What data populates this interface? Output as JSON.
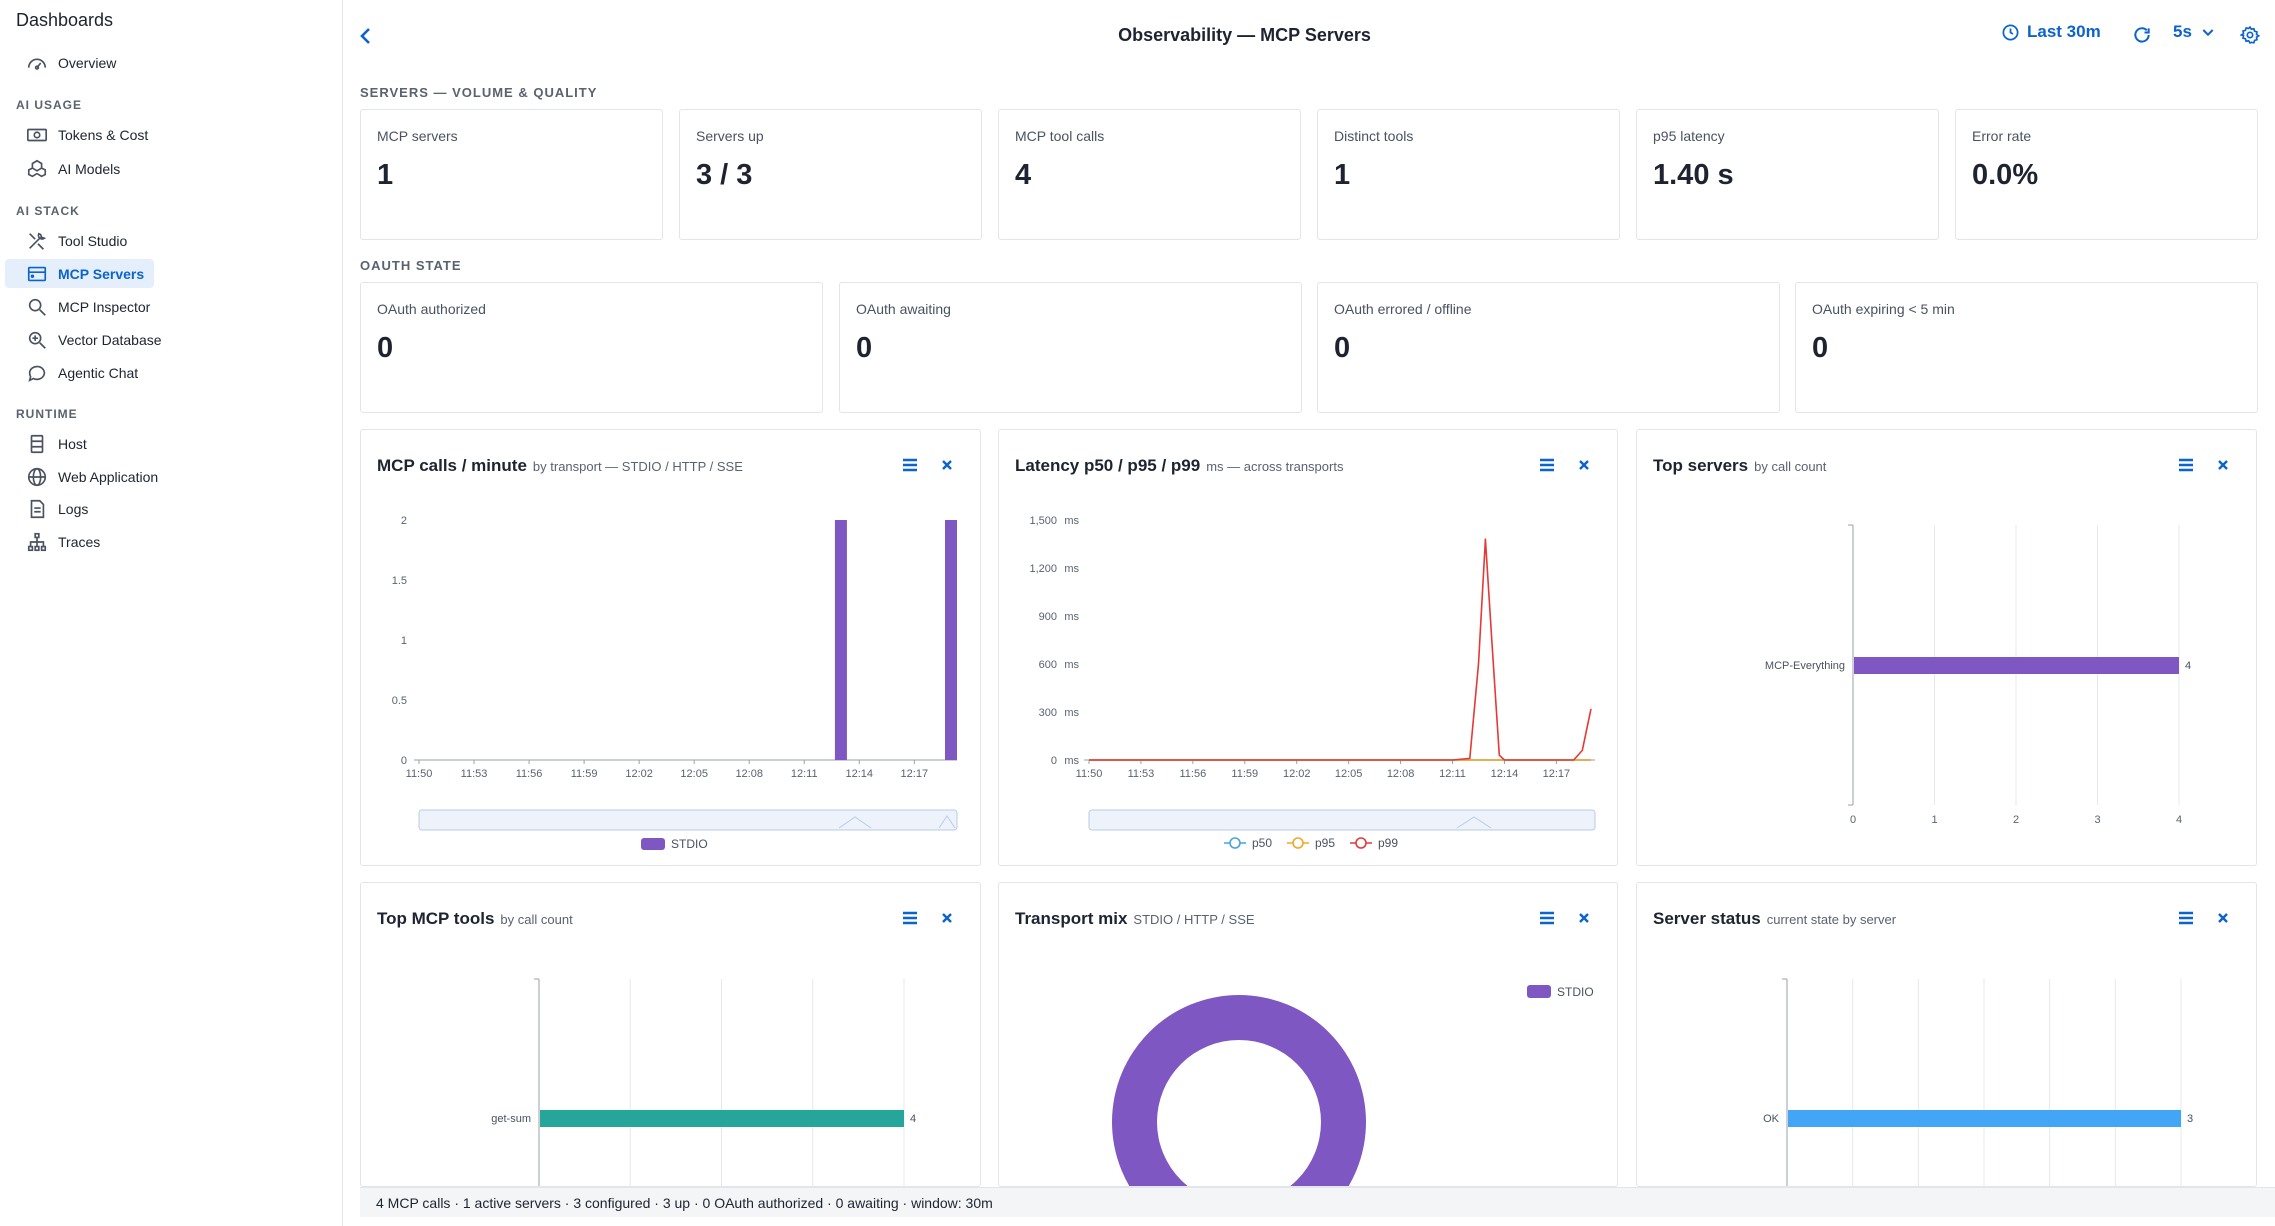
{
  "sidebar": {
    "title": "Dashboards",
    "overview": "Overview",
    "sections": {
      "ai_usage": "AI USAGE",
      "ai_stack": "AI STACK",
      "runtime": "RUNTIME"
    },
    "items": {
      "tokens_cost": "Tokens & Cost",
      "ai_models": "AI Models",
      "tool_studio": "Tool Studio",
      "mcp_servers": "MCP Servers",
      "mcp_inspector": "MCP Inspector",
      "vector_database": "Vector Database",
      "agentic_chat": "Agentic Chat",
      "host": "Host",
      "web_application": "Web Application",
      "logs": "Logs",
      "traces": "Traces"
    },
    "active_item": "MCP Servers"
  },
  "header": {
    "title": "Observability — MCP Servers",
    "time_range": "Last 30m",
    "refresh_interval": "5s"
  },
  "sections": {
    "volume": "SERVERS — VOLUME & QUALITY",
    "oauth": "OAUTH STATE"
  },
  "stats": [
    {
      "label": "MCP servers",
      "value": "1"
    },
    {
      "label": "Servers up",
      "value": "3 / 3"
    },
    {
      "label": "MCP tool calls",
      "value": "4"
    },
    {
      "label": "Distinct tools",
      "value": "1"
    },
    {
      "label": "p95 latency",
      "value": "1.40 s"
    },
    {
      "label": "Error rate",
      "value": "0.0%"
    }
  ],
  "oauth": [
    {
      "label": "OAuth authorized",
      "value": "0"
    },
    {
      "label": "OAuth awaiting",
      "value": "0"
    },
    {
      "label": "OAuth errored / offline",
      "value": "0"
    },
    {
      "label": "OAuth expiring < 5 min",
      "value": "0"
    }
  ],
  "panels": {
    "calls": {
      "title": "MCP calls / minute",
      "subtitle": "by transport — STDIO / HTTP / SSE"
    },
    "latency": {
      "title": "Latency p50 / p95 / p99",
      "subtitle": "ms — across transports"
    },
    "top_servers": {
      "title": "Top servers",
      "subtitle": "by call count"
    },
    "top_tools": {
      "title": "Top MCP tools",
      "subtitle": "by call count"
    },
    "transport": {
      "title": "Transport mix",
      "subtitle": "STDIO / HTTP / SSE"
    },
    "server_status": {
      "title": "Server status",
      "subtitle": "current state by server"
    }
  },
  "footer": {
    "text": "4 MCP calls · 1 active servers · 3 configured · 3 up · 0 OAuth authorized · 0 awaiting · window: 30m"
  },
  "colors": {
    "accent": "#0b63ce",
    "stdio": "#7e57c2",
    "p50": "#4aa3df",
    "p95": "#f5a623",
    "p99": "#e53935",
    "tools": "#26a69a",
    "status_ok": "#42a5f5"
  },
  "icons": {
    "back": "chevron-left-icon",
    "time": "clock-icon",
    "refresh": "refresh-icon",
    "interval": "chevron-down-icon",
    "settings": "gear-icon",
    "panel_menu": "hamburger-menu-icon",
    "panel_close": "close-icon"
  },
  "chart_data": [
    {
      "id": "calls",
      "type": "bar",
      "x": [
        "11:50",
        "11:51",
        "11:52",
        "11:53",
        "11:54",
        "11:55",
        "11:56",
        "11:57",
        "11:58",
        "11:59",
        "12:00",
        "12:01",
        "12:02",
        "12:03",
        "12:04",
        "12:05",
        "12:06",
        "12:07",
        "12:08",
        "12:09",
        "12:10",
        "12:11",
        "12:12",
        "12:13",
        "12:14",
        "12:15",
        "12:16",
        "12:17",
        "12:18",
        "12:19"
      ],
      "x_ticks": [
        "11:50",
        "11:53",
        "11:56",
        "11:59",
        "12:02",
        "12:05",
        "12:08",
        "12:11",
        "12:14",
        "12:17"
      ],
      "series": [
        {
          "name": "STDIO",
          "values": [
            0,
            0,
            0,
            0,
            0,
            0,
            0,
            0,
            0,
            0,
            0,
            0,
            0,
            0,
            0,
            0,
            0,
            0,
            0,
            0,
            0,
            0,
            0,
            2,
            0,
            0,
            0,
            0,
            0,
            2
          ]
        }
      ],
      "y_ticks": [
        "0",
        "0.5",
        "1",
        "1.5",
        "2"
      ],
      "ylim": [
        0,
        2
      ],
      "legend": "bottom",
      "zoom_slider": true
    },
    {
      "id": "latency",
      "type": "line",
      "x_ticks": [
        "11:50",
        "11:53",
        "11:56",
        "11:59",
        "12:02",
        "12:05",
        "12:08",
        "12:11",
        "12:14",
        "12:17"
      ],
      "xlim": [
        "11:50",
        "12:19"
      ],
      "series": [
        {
          "name": "p50",
          "points": [
            [
              "11:50",
              0
            ],
            [
              "12:19",
              0
            ]
          ]
        },
        {
          "name": "p95",
          "points": [
            [
              "11:50",
              0
            ],
            [
              "12:19",
              0
            ]
          ]
        },
        {
          "name": "p99",
          "points": [
            [
              "11:50",
              0
            ],
            [
              "12:11",
              0
            ],
            [
              "12:12",
              10
            ],
            [
              "12:12.5",
              600
            ],
            [
              "12:12.9",
              1380
            ],
            [
              "12:13.3",
              700
            ],
            [
              "12:13.7",
              30
            ],
            [
              "12:14",
              0
            ],
            [
              "12:18",
              0
            ],
            [
              "12:18.5",
              60
            ],
            [
              "12:19",
              320
            ]
          ]
        }
      ],
      "y_ticks": [
        "0",
        "300",
        "600",
        "900",
        "1,200",
        "1,500"
      ],
      "y_unit": "ms",
      "ylim": [
        0,
        1500
      ],
      "legend": "bottom",
      "zoom_slider": true
    },
    {
      "id": "top_servers",
      "type": "bar",
      "orientation": "horizontal",
      "categories": [
        "MCP-Everything"
      ],
      "values": [
        4
      ],
      "data_labels": [
        "4"
      ],
      "x_ticks": [
        "0",
        "1",
        "2",
        "3",
        "4"
      ],
      "xlim": [
        0,
        4
      ]
    },
    {
      "id": "top_tools",
      "type": "bar",
      "orientation": "horizontal",
      "categories": [
        "get-sum"
      ],
      "values": [
        4
      ],
      "data_labels": [
        "4"
      ],
      "xlim": [
        0,
        4
      ]
    },
    {
      "id": "transport",
      "type": "pie",
      "donut": true,
      "categories": [
        "STDIO"
      ],
      "values": [
        4
      ],
      "legend": "top-right"
    },
    {
      "id": "server_status",
      "type": "bar",
      "orientation": "horizontal",
      "categories": [
        "OK"
      ],
      "values": [
        3
      ],
      "data_labels": [
        "3"
      ],
      "xlim": [
        0,
        3
      ]
    }
  ]
}
